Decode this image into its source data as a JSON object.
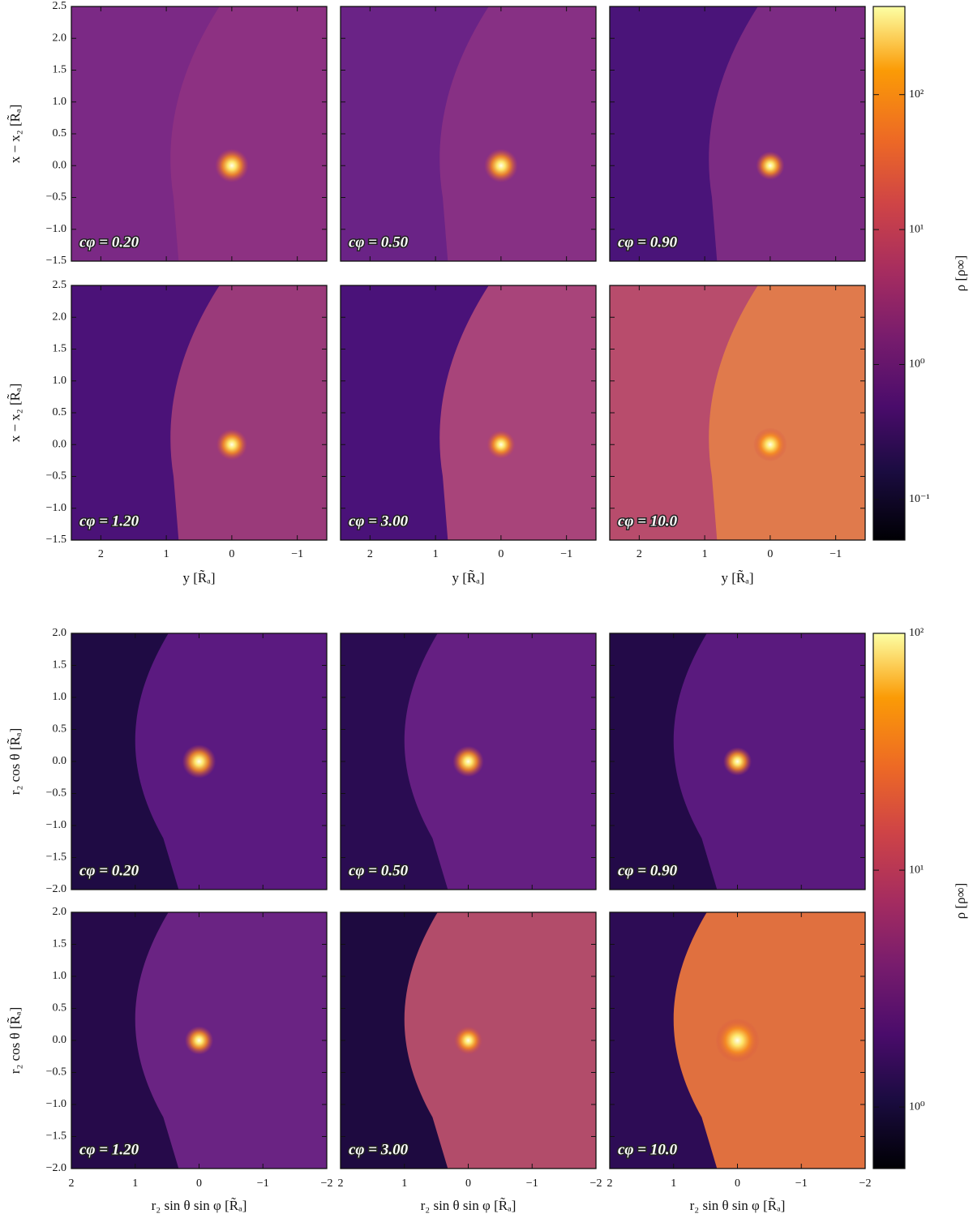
{
  "chart_data": [
    {
      "type": "heatmap",
      "panels": [
        "cφ = 0.20",
        "cφ = 0.50",
        "cφ = 0.90",
        "cφ = 1.20",
        "cφ = 3.00",
        "cφ = 10.0"
      ],
      "xlabel": "y [R̃ₐ]",
      "ylabel": "x − x₂ [R̃ₐ]",
      "xlim": [
        2.45,
        -1.45
      ],
      "ylim": [
        -1.5,
        2.5
      ],
      "xticks": [
        2,
        1,
        0,
        {
          "value": -1,
          "label": "−1"
        }
      ],
      "yticks": [
        {
          "value": -1.5,
          "label": "−1.5"
        },
        {
          "value": -1,
          "label": "−1.0"
        },
        {
          "value": -0.5,
          "label": "−0.5"
        },
        {
          "value": 0,
          "label": "0.0"
        },
        0.5,
        {
          "value": 1,
          "label": "1.0"
        },
        1.5,
        {
          "value": 2,
          "label": "2.0"
        },
        2.5
      ],
      "colormap": "inferno",
      "colorbar": {
        "label": "ρ [ρ∞]",
        "log": true,
        "lim": [
          0.05,
          450
        ],
        "ticks": [
          {
            "value": 0.1,
            "label": "10⁻¹"
          },
          {
            "value": 1,
            "label": "10⁰"
          },
          {
            "value": 10,
            "label": "10¹"
          },
          {
            "value": 100,
            "label": "10²"
          }
        ]
      }
    },
    {
      "type": "heatmap",
      "panels": [
        "cφ = 0.20",
        "cφ = 0.50",
        "cφ = 0.90",
        "cφ = 1.20",
        "cφ = 3.00",
        "cφ = 10.0"
      ],
      "xlabel": "r₂ sin θ sin φ [R̃ₐ]",
      "ylabel": "r₂ cos θ [R̃ₐ]",
      "xlim": [
        2,
        -2
      ],
      "ylim": [
        -2,
        2
      ],
      "xticks": [
        2,
        1,
        0,
        {
          "value": -1,
          "label": "−1"
        },
        {
          "value": -2,
          "label": "−2"
        }
      ],
      "yticks": [
        {
          "value": -2,
          "label": "−2.0"
        },
        {
          "value": -1.5,
          "label": "−1.5"
        },
        {
          "value": -1,
          "label": "−1.0"
        },
        {
          "value": -0.5,
          "label": "−0.5"
        },
        {
          "value": 0,
          "label": "0.0"
        },
        0.5,
        {
          "value": 1,
          "label": "1.0"
        },
        1.5,
        {
          "value": 2,
          "label": "2.0"
        }
      ],
      "colormap": "inferno",
      "colorbar": {
        "label": "ρ [ρ∞]",
        "log": true,
        "lim": [
          0.55,
          100
        ],
        "ticks": [
          {
            "value": 1,
            "label": "10⁰"
          },
          {
            "value": 10,
            "label": "10¹"
          },
          {
            "value": 100,
            "label": "10²"
          }
        ]
      }
    }
  ]
}
